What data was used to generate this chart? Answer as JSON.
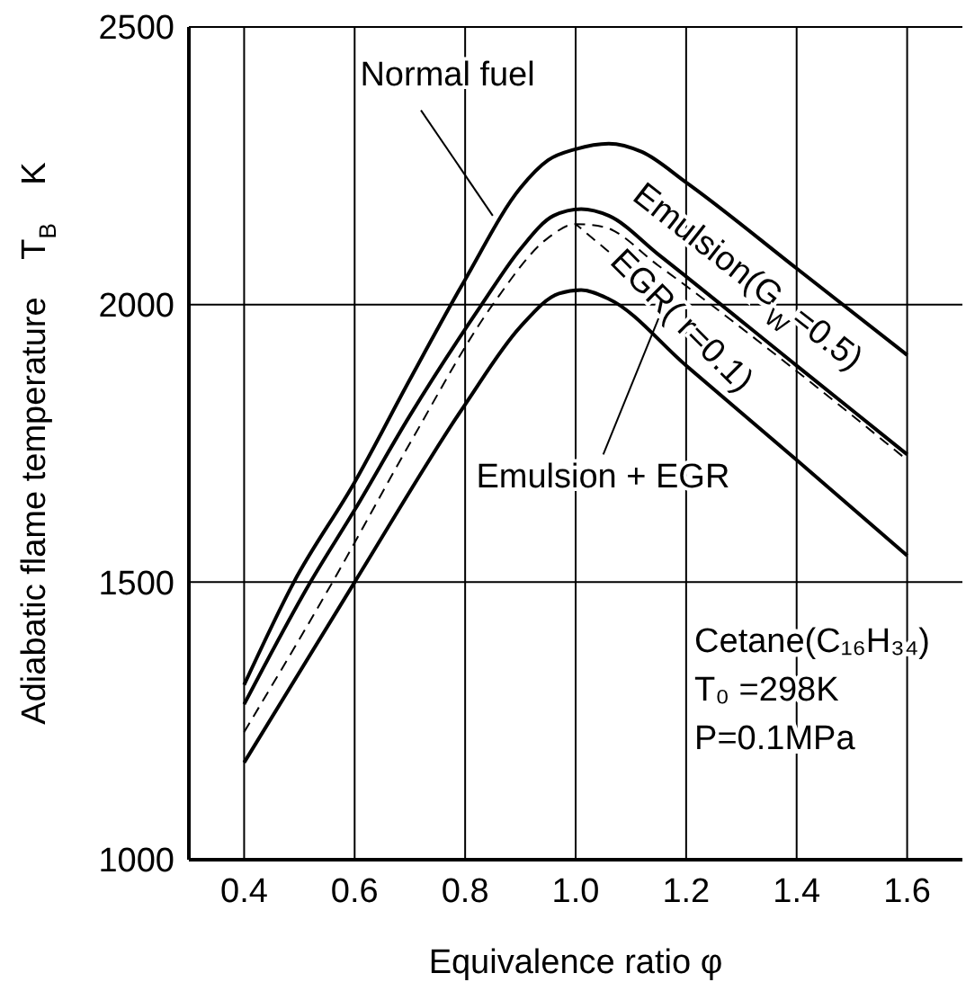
{
  "chart_data": {
    "type": "line",
    "xlabel": "Equivalence ratio    φ",
    "ylabel": "Adiabatic flame temperature    T$_{B}$    K",
    "xlim": [
      0.3,
      1.7
    ],
    "xticks": [
      {
        "value": 0.4,
        "label": "0.4"
      },
      {
        "value": 0.6,
        "label": "0.6"
      },
      {
        "value": 0.8,
        "label": "0.8"
      },
      {
        "value": 1.0,
        "label": "1.0"
      },
      {
        "value": 1.2,
        "label": "1.2"
      },
      {
        "value": 1.4,
        "label": "1.4"
      },
      {
        "value": 1.6,
        "label": "1.6"
      }
    ],
    "ylim": [
      1000,
      2500
    ],
    "yticks": [
      1000,
      1500,
      2000,
      2500
    ],
    "grid": true,
    "marker": "none",
    "series": [
      {
        "name": "Normal fuel",
        "color": "#000000",
        "line_style": "solid",
        "x": [
          0.4,
          0.49,
          0.6,
          0.7,
          0.8,
          0.9,
          0.95,
          1.0,
          1.06,
          1.12,
          1.2,
          1.4,
          1.6
        ],
        "values": [
          1315,
          1500,
          1680,
          1865,
          2045,
          2210,
          2260,
          2280,
          2290,
          2275,
          2220,
          2065,
          1909
        ]
      },
      {
        "name": "Emulsion(G$_{W}$=0.5)",
        "color": "#000000",
        "line_style": "solid",
        "x": [
          0.4,
          0.52,
          0.6,
          0.7,
          0.83,
          0.9,
          0.96,
          1.01,
          1.06,
          1.15,
          1.4,
          1.6
        ],
        "values": [
          1280,
          1500,
          1630,
          1800,
          2000,
          2100,
          2160,
          2172,
          2160,
          2090,
          1890,
          1730
        ]
      },
      {
        "name": "EGR( r=0.1)",
        "color": "#000000",
        "line_style": "dashed",
        "x": [
          0.4,
          0.56,
          0.7,
          0.85,
          0.95,
          1.0,
          1.05,
          1.15,
          1.4,
          1.6
        ],
        "values": [
          1230,
          1500,
          1750,
          2000,
          2120,
          2145,
          2140,
          2070,
          1880,
          1720
        ]
      },
      {
        "name": "Emulsion + EGR",
        "color": "#000000",
        "line_style": "solid",
        "x": [
          0.4,
          0.6,
          0.8,
          0.9,
          0.97,
          1.01,
          1.06,
          1.2,
          1.4,
          1.6
        ],
        "values": [
          1175,
          1500,
          1820,
          1960,
          2020,
          2026,
          2010,
          1890,
          1720,
          1548
        ]
      }
    ],
    "annotations": [
      "Cetane(C₁₆H₃₄)",
      "T₀ =298K",
      "P=0.1MPa"
    ]
  }
}
